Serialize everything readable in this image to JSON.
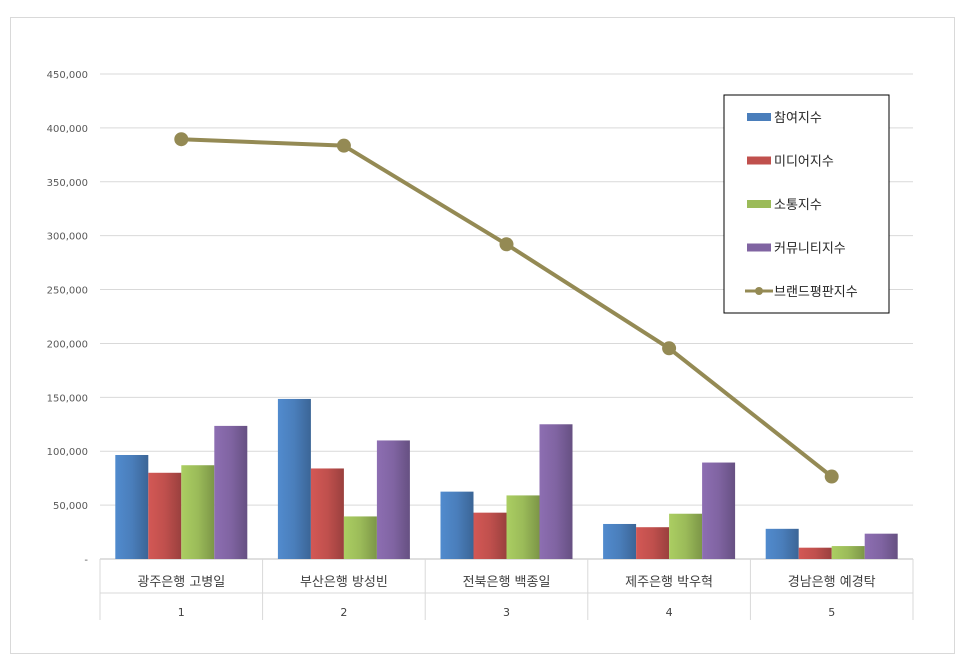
{
  "chart_data": {
    "type": "bar",
    "categories": [
      "광주은행 고병일",
      "부산은행 방성빈",
      "전북은행 백종일",
      "제주은행 박우혁",
      "경남은행 예경탁"
    ],
    "category_index": [
      "1",
      "2",
      "3",
      "4",
      "5"
    ],
    "series": [
      {
        "name": "참여지수",
        "type": "bar",
        "color": "#4a7ebb",
        "values": [
          96500,
          148500,
          62500,
          32500,
          28000
        ]
      },
      {
        "name": "미디어지수",
        "type": "bar",
        "color": "#c0504d",
        "values": [
          80000,
          84000,
          43000,
          29500,
          10500
        ]
      },
      {
        "name": "소통지수",
        "type": "bar",
        "color": "#9bbb59",
        "values": [
          87000,
          39500,
          59000,
          42000,
          12000
        ]
      },
      {
        "name": "커뮤니티지수",
        "type": "bar",
        "color": "#8064a2",
        "values": [
          123500,
          110000,
          125000,
          89500,
          23500
        ]
      },
      {
        "name": "브랜드평판지수",
        "type": "line",
        "color": "#948a54",
        "values": [
          389500,
          383500,
          292000,
          195500,
          76500
        ]
      }
    ],
    "ylim": [
      0,
      450000
    ],
    "yticks": [
      "-",
      "50,000",
      "100,000",
      "150,000",
      "200,000",
      "250,000",
      "300,000",
      "350,000",
      "400,000",
      "450,000"
    ],
    "grid": true,
    "legend_position": "top-right"
  }
}
